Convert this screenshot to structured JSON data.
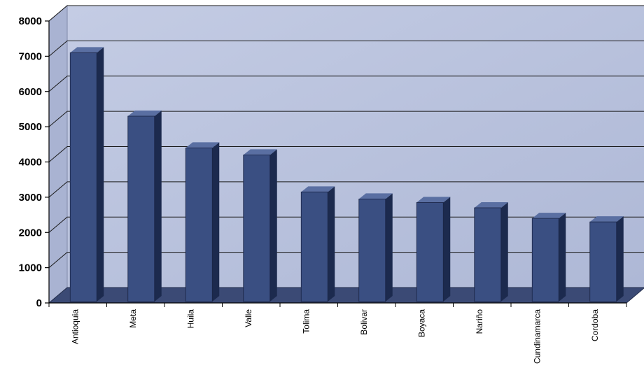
{
  "chart_data": {
    "type": "bar",
    "title": "",
    "xlabel": "",
    "ylabel": "",
    "categories": [
      "Antioquia",
      "Meta",
      "Huila",
      "Valle",
      "Tolima",
      "Bolivar",
      "Boyaca",
      "Nariño",
      "Cundinamarca",
      "Cordoba"
    ],
    "values": [
      7100,
      5300,
      4400,
      4200,
      3150,
      2950,
      2850,
      2700,
      2400,
      2300
    ],
    "ylim": [
      0,
      8000
    ],
    "yticks": [
      "0",
      "1000",
      "2000",
      "3000",
      "4000",
      "5000",
      "6000",
      "7000",
      "8000"
    ],
    "grid": true,
    "legend": "none",
    "colors": {
      "bar_front": "#3a4f82",
      "bar_side": "#1c2a4e",
      "bar_top": "#5a6fa2",
      "wall": "#b7c0dc",
      "floor": "#3b4a75",
      "gridline": "#1a1a1a"
    }
  }
}
